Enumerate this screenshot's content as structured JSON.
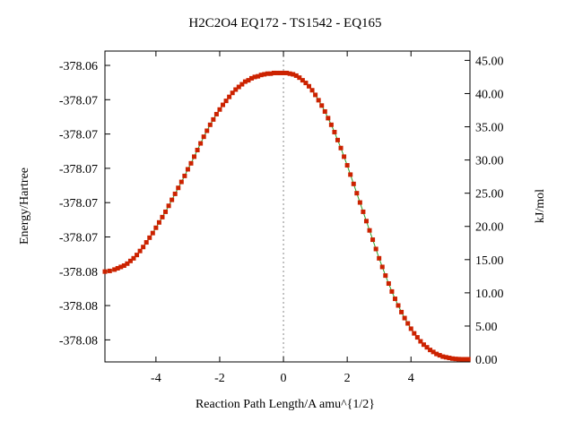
{
  "chart_data": {
    "type": "line",
    "title": "H2C2O4    EQ172 - TS1542 - EQ165",
    "xlabel": "Reaction Path Length/A amu^{1/2}",
    "ylabel_left": "Energy/Hartree",
    "ylabel_right": "kJ/mol",
    "xlim": [
      -5.6,
      5.85
    ],
    "ylim_right_kJmol": [
      -0.4,
      46.4
    ],
    "x_ticks": [
      {
        "value": -4,
        "label": "-4"
      },
      {
        "value": -2,
        "label": "-2"
      },
      {
        "value": 0,
        "label": "0"
      },
      {
        "value": 2,
        "label": "2"
      },
      {
        "value": 4,
        "label": "4"
      }
    ],
    "y_left_tick_labels": [
      "-378.06",
      "-378.07",
      "-378.07",
      "-378.07",
      "-378.07",
      "-378.07",
      "-378.08",
      "-378.08",
      "-378.08"
    ],
    "y_right_ticks": [
      {
        "value": 0,
        "label": "0.00"
      },
      {
        "value": 5,
        "label": "5.00"
      },
      {
        "value": 10,
        "label": "10.00"
      },
      {
        "value": 15,
        "label": "15.00"
      },
      {
        "value": 20,
        "label": "20.00"
      },
      {
        "value": 25,
        "label": "25.00"
      },
      {
        "value": 30,
        "label": "30.00"
      },
      {
        "value": 35,
        "label": "35.00"
      },
      {
        "value": 40,
        "label": "40.00"
      },
      {
        "value": 45,
        "label": "45.00"
      }
    ],
    "ts_marker_x": 0,
    "grid": false,
    "colors": {
      "line": "#2ca02c",
      "points": "#cc2200",
      "ts_line": "#888888",
      "frame": "#000000"
    },
    "series": [
      {
        "x": [
          -5.6,
          -5.45,
          -5.3,
          -5.2,
          -5.1,
          -5.0,
          -4.9,
          -4.8,
          -4.7,
          -4.6,
          -4.5,
          -4.4,
          -4.3,
          -4.2,
          -4.1,
          -4.0,
          -3.9,
          -3.8,
          -3.7,
          -3.6,
          -3.5,
          -3.4,
          -3.3,
          -3.2,
          -3.1,
          -3.0,
          -2.9,
          -2.8,
          -2.7,
          -2.6,
          -2.5,
          -2.4,
          -2.3,
          -2.2,
          -2.1,
          -2.0,
          -1.9,
          -1.8,
          -1.7,
          -1.6,
          -1.5,
          -1.4,
          -1.3,
          -1.2,
          -1.1,
          -1.0,
          -0.9,
          -0.8,
          -0.7,
          -0.6,
          -0.5,
          -0.4,
          -0.3,
          -0.2,
          -0.1,
          0.0,
          0.1,
          0.2,
          0.3,
          0.4,
          0.5,
          0.6,
          0.7,
          0.8,
          0.9,
          1.0,
          1.1,
          1.2,
          1.3,
          1.4,
          1.5,
          1.6,
          1.7,
          1.8,
          1.9,
          2.0,
          2.1,
          2.2,
          2.3,
          2.4,
          2.5,
          2.6,
          2.7,
          2.8,
          2.9,
          3.0,
          3.1,
          3.2,
          3.3,
          3.4,
          3.5,
          3.6,
          3.7,
          3.8,
          3.9,
          4.0,
          4.1,
          4.2,
          4.3,
          4.4,
          4.5,
          4.6,
          4.7,
          4.8,
          4.9,
          5.0,
          5.1,
          5.2,
          5.3,
          5.4,
          5.5,
          5.6,
          5.7,
          5.8
        ],
        "y": [
          13.2,
          13.3,
          13.5,
          13.7,
          13.9,
          14.1,
          14.4,
          14.8,
          15.2,
          15.7,
          16.3,
          16.9,
          17.6,
          18.3,
          19.0,
          19.8,
          20.6,
          21.4,
          22.2,
          23.1,
          24.0,
          24.9,
          25.8,
          26.7,
          27.6,
          28.6,
          29.5,
          30.5,
          31.5,
          32.5,
          33.5,
          34.4,
          35.3,
          36.1,
          36.9,
          37.6,
          38.3,
          38.9,
          39.5,
          40.1,
          40.6,
          41.0,
          41.4,
          41.8,
          42.0,
          42.3,
          42.5,
          42.6,
          42.8,
          42.9,
          43.0,
          43.0,
          43.1,
          43.1,
          43.1,
          43.1,
          43.1,
          43.0,
          42.9,
          42.7,
          42.4,
          42.0,
          41.6,
          41.1,
          40.5,
          39.8,
          39.0,
          38.2,
          37.3,
          36.3,
          35.3,
          34.2,
          33.0,
          31.8,
          30.5,
          29.2,
          27.8,
          26.4,
          25.0,
          23.6,
          22.2,
          20.8,
          19.4,
          18.0,
          16.6,
          15.2,
          13.9,
          12.6,
          11.4,
          10.2,
          9.1,
          8.1,
          7.1,
          6.2,
          5.4,
          4.6,
          3.9,
          3.3,
          2.7,
          2.2,
          1.8,
          1.4,
          1.1,
          0.8,
          0.6,
          0.4,
          0.3,
          0.2,
          0.1,
          0.05,
          0.02,
          0.0,
          0.0,
          0.0
        ]
      }
    ]
  }
}
